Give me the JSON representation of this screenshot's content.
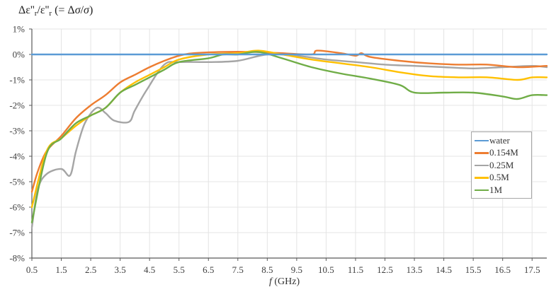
{
  "chart_data": {
    "type": "line",
    "title": "",
    "ylabel": "Δε''r/ε''r (= Δσ/σ)",
    "xlabel": "f (GHz)",
    "xlim": [
      0.5,
      18.0
    ],
    "ylim": [
      -8,
      1
    ],
    "x_ticks": [
      "0.5",
      "1.5",
      "2.5",
      "3.5",
      "4.5",
      "5.5",
      "6.5",
      "7.5",
      "8.5",
      "9.5",
      "10.5",
      "11.5",
      "12.5",
      "13.5",
      "14.5",
      "15.5",
      "16.5",
      "17.5"
    ],
    "y_ticks": [
      "1%",
      "0%",
      "-1%",
      "-2%",
      "-3%",
      "-4%",
      "-5%",
      "-6%",
      "-7%",
      "-8%"
    ],
    "y_unit": "%",
    "grid": true,
    "legend_position": "right-middle",
    "series": [
      {
        "name": "water",
        "color": "#5b9bd5",
        "points": [
          [
            0.5,
            0
          ],
          [
            18.0,
            0
          ]
        ]
      },
      {
        "name": "0.154M",
        "color": "#ed7d31",
        "points": [
          [
            0.5,
            -5.4
          ],
          [
            0.7,
            -4.6
          ],
          [
            1.0,
            -3.8
          ],
          [
            1.5,
            -3.2
          ],
          [
            2.0,
            -2.5
          ],
          [
            2.5,
            -2.0
          ],
          [
            3.0,
            -1.6
          ],
          [
            3.5,
            -1.1
          ],
          [
            4.0,
            -0.8
          ],
          [
            4.5,
            -0.5
          ],
          [
            5.0,
            -0.25
          ],
          [
            5.5,
            -0.05
          ],
          [
            6.0,
            0.05
          ],
          [
            7.0,
            0.1
          ],
          [
            8.0,
            0.1
          ],
          [
            9.0,
            0.05
          ],
          [
            10.0,
            0.0
          ],
          [
            10.2,
            0.15
          ],
          [
            11.0,
            0.05
          ],
          [
            11.5,
            -0.05
          ],
          [
            11.7,
            0.05
          ],
          [
            12.0,
            -0.1
          ],
          [
            13.0,
            -0.25
          ],
          [
            14.0,
            -0.35
          ],
          [
            15.0,
            -0.4
          ],
          [
            16.0,
            -0.4
          ],
          [
            17.0,
            -0.5
          ],
          [
            18.0,
            -0.45
          ]
        ]
      },
      {
        "name": "0.25M",
        "color": "#a5a5a5",
        "points": [
          [
            0.5,
            -6.8
          ],
          [
            0.7,
            -5.3
          ],
          [
            1.0,
            -4.7
          ],
          [
            1.5,
            -4.5
          ],
          [
            1.8,
            -4.75
          ],
          [
            2.0,
            -3.8
          ],
          [
            2.3,
            -2.7
          ],
          [
            2.7,
            -2.1
          ],
          [
            3.0,
            -2.3
          ],
          [
            3.3,
            -2.6
          ],
          [
            3.8,
            -2.65
          ],
          [
            4.0,
            -2.2
          ],
          [
            4.4,
            -1.4
          ],
          [
            5.0,
            -0.4
          ],
          [
            5.5,
            -0.3
          ],
          [
            6.5,
            -0.3
          ],
          [
            7.5,
            -0.25
          ],
          [
            8.5,
            0.0
          ],
          [
            9.5,
            -0.05
          ],
          [
            10.5,
            -0.2
          ],
          [
            11.5,
            -0.3
          ],
          [
            12.5,
            -0.4
          ],
          [
            13.5,
            -0.45
          ],
          [
            14.5,
            -0.5
          ],
          [
            15.5,
            -0.55
          ],
          [
            16.5,
            -0.5
          ],
          [
            17.5,
            -0.45
          ],
          [
            18.0,
            -0.5
          ]
        ]
      },
      {
        "name": "0.5M",
        "color": "#ffc000",
        "points": [
          [
            0.5,
            -6.0
          ],
          [
            1.0,
            -3.8
          ],
          [
            1.5,
            -3.3
          ],
          [
            2.0,
            -2.8
          ],
          [
            2.5,
            -2.4
          ],
          [
            3.0,
            -2.1
          ],
          [
            3.5,
            -1.5
          ],
          [
            4.0,
            -1.1
          ],
          [
            4.5,
            -0.8
          ],
          [
            5.0,
            -0.5
          ],
          [
            5.5,
            -0.2
          ],
          [
            6.5,
            0.0
          ],
          [
            7.5,
            0.05
          ],
          [
            8.2,
            0.15
          ],
          [
            9.0,
            0.0
          ],
          [
            10.0,
            -0.2
          ],
          [
            11.0,
            -0.35
          ],
          [
            12.0,
            -0.5
          ],
          [
            13.0,
            -0.7
          ],
          [
            14.0,
            -0.85
          ],
          [
            15.0,
            -0.9
          ],
          [
            16.0,
            -0.9
          ],
          [
            17.0,
            -1.0
          ],
          [
            17.5,
            -0.9
          ],
          [
            18.0,
            -0.9
          ]
        ]
      },
      {
        "name": "1M",
        "color": "#70ad47",
        "points": [
          [
            0.5,
            -6.6
          ],
          [
            1.0,
            -3.9
          ],
          [
            1.5,
            -3.3
          ],
          [
            2.0,
            -2.7
          ],
          [
            2.5,
            -2.4
          ],
          [
            3.0,
            -2.1
          ],
          [
            3.5,
            -1.5
          ],
          [
            4.0,
            -1.2
          ],
          [
            4.5,
            -0.9
          ],
          [
            5.0,
            -0.6
          ],
          [
            5.5,
            -0.3
          ],
          [
            6.5,
            -0.15
          ],
          [
            7.0,
            0.0
          ],
          [
            7.5,
            0.0
          ],
          [
            8.2,
            0.1
          ],
          [
            9.0,
            -0.15
          ],
          [
            10.0,
            -0.5
          ],
          [
            11.0,
            -0.75
          ],
          [
            12.0,
            -0.95
          ],
          [
            13.0,
            -1.2
          ],
          [
            13.5,
            -1.5
          ],
          [
            14.5,
            -1.5
          ],
          [
            15.5,
            -1.5
          ],
          [
            16.5,
            -1.65
          ],
          [
            17.0,
            -1.75
          ],
          [
            17.5,
            -1.6
          ],
          [
            18.0,
            -1.6
          ]
        ]
      }
    ]
  },
  "legend": {
    "items": [
      {
        "label": "water",
        "color": "#5b9bd5"
      },
      {
        "label": "0.154M",
        "color": "#ed7d31"
      },
      {
        "label": "0.25M",
        "color": "#a5a5a5"
      },
      {
        "label": "0.5M",
        "color": "#ffc000"
      },
      {
        "label": "1M",
        "color": "#70ad47"
      }
    ]
  },
  "axis_titles": {
    "y_main": "Δε''",
    "y_sub1": "r",
    "y_mid": "/ε''",
    "y_sub2": "r",
    "y_tail_open": " (= Δ",
    "y_sigma1": "σ",
    "y_slash": "/",
    "y_sigma2": "σ",
    "y_tail_close": ")",
    "x_var": "f",
    "x_unit": " (GHz)"
  }
}
